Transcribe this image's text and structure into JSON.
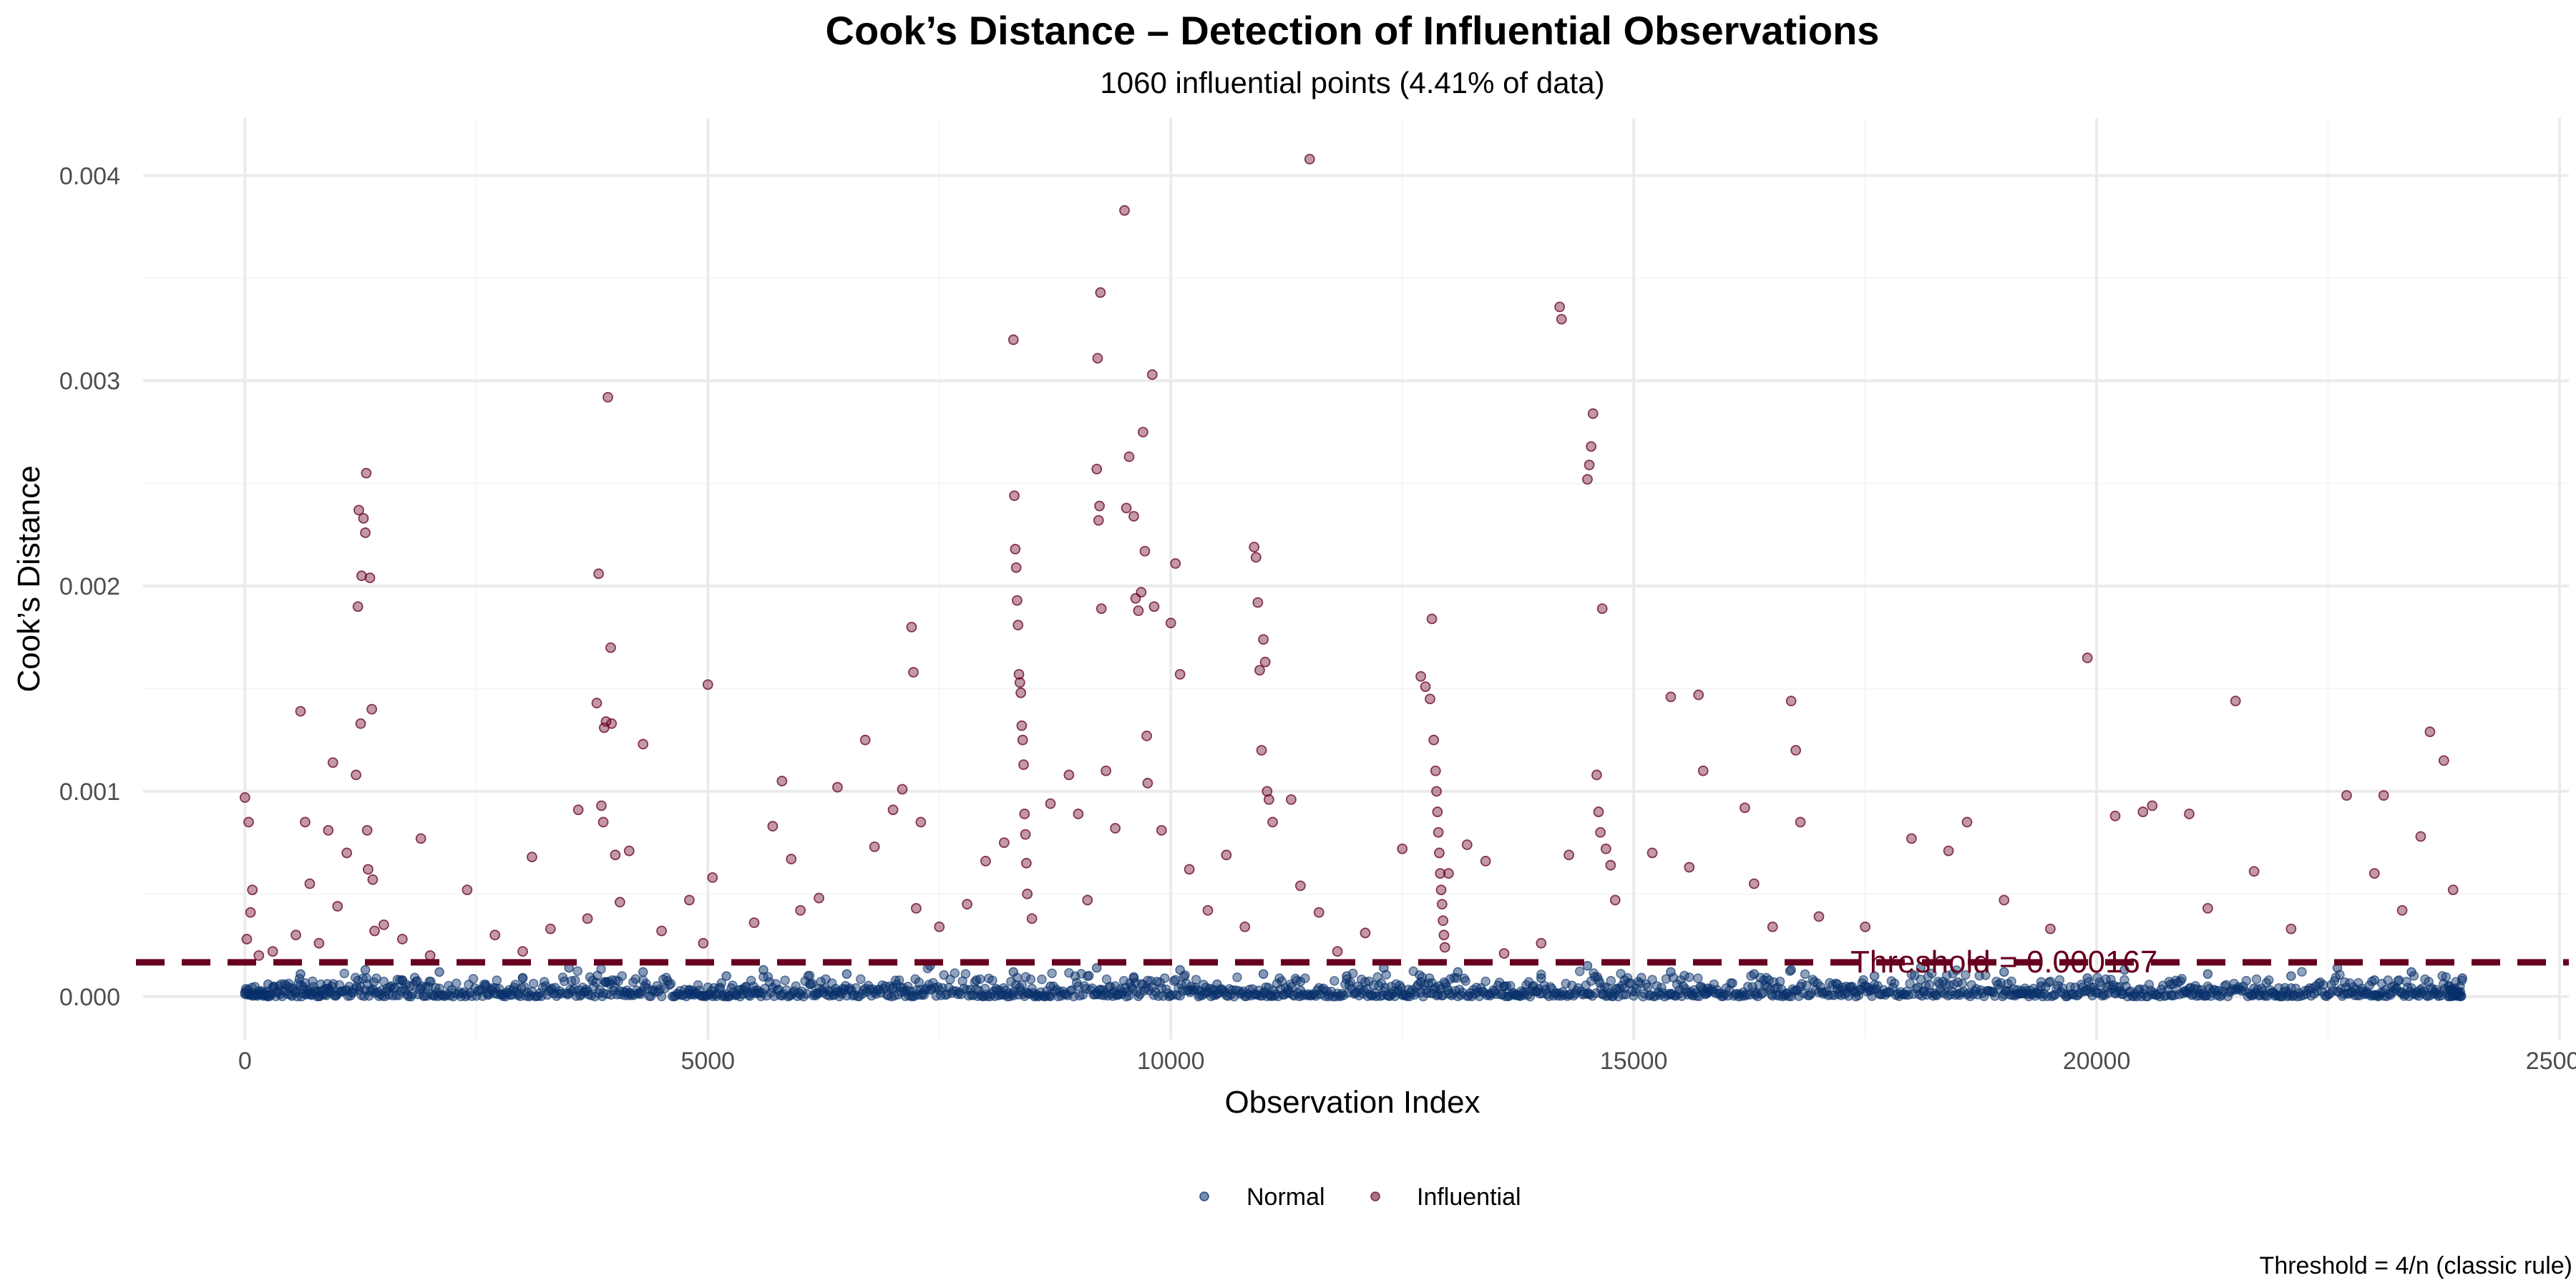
{
  "chart_data": {
    "type": "scatter",
    "title": "Cook’s Distance – Detection of Influential Observations",
    "subtitle": "1060 influential points (4.41% of data)",
    "xlabel": "Observation Index",
    "ylabel": "Cook’s Distance",
    "caption": "Threshold = 4/n (classic rule)",
    "xlim": [
      -1100,
      25100
    ],
    "ylim": [
      -0.00021,
      0.00428
    ],
    "x_ticks": [
      0,
      5000,
      10000,
      15000,
      20000,
      25000
    ],
    "x_tick_labels": [
      "0",
      "5000",
      "10000",
      "15000",
      "20000",
      "25000"
    ],
    "y_ticks": [
      0,
      0.001,
      0.002,
      0.003,
      0.004
    ],
    "y_tick_labels": [
      "0.000",
      "0.001",
      "0.002",
      "0.003",
      "0.004"
    ],
    "grid": true,
    "legend_position": "bottom",
    "colors": {
      "normal": "#08306b",
      "influential": "#67001f"
    },
    "threshold": {
      "value": 0.000167,
      "label": "Threshold = 0.000167",
      "label_x": 19000,
      "style": "dashed",
      "color": "#67001f"
    },
    "series": [
      {
        "name": "Normal",
        "color": "#08306b",
        "points": [
          [
            0,
            2e-05
          ],
          [
            250,
            6e-05
          ],
          [
            600,
            0.00011
          ],
          [
            900,
            4e-05
          ],
          [
            1300,
            0.00013
          ],
          [
            1700,
            8e-05
          ],
          [
            2100,
            0.00012
          ],
          [
            2600,
            5e-05
          ],
          [
            3000,
            9e-05
          ],
          [
            3500,
            0.00014
          ],
          [
            3900,
            7e-05
          ],
          [
            4300,
            0.00012
          ],
          [
            4800,
            3e-05
          ],
          [
            5200,
            0.0001
          ],
          [
            5600,
            0.00013
          ],
          [
            6100,
            6e-05
          ],
          [
            6500,
            0.00011
          ],
          [
            7000,
            4e-05
          ],
          [
            7400,
            0.00015
          ],
          [
            7900,
            8e-05
          ],
          [
            8300,
            0.00012
          ],
          [
            8700,
            5e-05
          ],
          [
            9200,
            0.00014
          ],
          [
            9600,
            9e-05
          ],
          [
            10100,
            0.00013
          ],
          [
            10500,
            6e-05
          ],
          [
            11000,
            0.00011
          ],
          [
            11400,
            3e-05
          ],
          [
            11900,
            0.0001
          ],
          [
            12300,
            0.00014
          ],
          [
            12700,
            7e-05
          ],
          [
            13100,
            0.00012
          ],
          [
            13600,
            5e-05
          ],
          [
            14000,
            9e-05
          ],
          [
            14500,
            0.00015
          ],
          [
            14900,
            8e-05
          ],
          [
            15400,
            0.00012
          ],
          [
            15800,
            4e-05
          ],
          [
            16300,
            0.00011
          ],
          [
            16700,
            0.00013
          ],
          [
            17200,
            6e-05
          ],
          [
            17600,
            0.0001
          ],
          [
            18100,
            0.00014
          ],
          [
            18500,
            7e-05
          ],
          [
            19000,
            0.00012
          ],
          [
            19400,
            5e-05
          ],
          [
            19900,
            9e-05
          ],
          [
            20300,
            0.00013
          ],
          [
            20800,
            6e-05
          ],
          [
            21200,
            0.00011
          ],
          [
            21700,
            4e-05
          ],
          [
            22100,
            0.0001
          ],
          [
            22600,
            0.00014
          ],
          [
            23000,
            8e-05
          ],
          [
            23400,
            0.00012
          ],
          [
            23800,
            5e-05
          ],
          [
            23950,
            9e-05
          ]
        ]
      },
      {
        "name": "Influential",
        "color": "#67001f",
        "points": [
          [
            0,
            0.00097
          ],
          [
            40,
            0.00085
          ],
          [
            80,
            0.00052
          ],
          [
            60,
            0.00041
          ],
          [
            20,
            0.00028
          ],
          [
            150,
            0.0002
          ],
          [
            300,
            0.00022
          ],
          [
            550,
            0.0003
          ],
          [
            600,
            0.00139
          ],
          [
            650,
            0.00085
          ],
          [
            700,
            0.00055
          ],
          [
            800,
            0.00026
          ],
          [
            900,
            0.00081
          ],
          [
            950,
            0.00114
          ],
          [
            1000,
            0.00044
          ],
          [
            1100,
            0.0007
          ],
          [
            1200,
            0.00108
          ],
          [
            1220,
            0.0019
          ],
          [
            1230,
            0.00237
          ],
          [
            1250,
            0.00133
          ],
          [
            1260,
            0.00205
          ],
          [
            1280,
            0.00233
          ],
          [
            1300,
            0.00226
          ],
          [
            1310,
            0.00255
          ],
          [
            1320,
            0.00081
          ],
          [
            1330,
            0.00062
          ],
          [
            1350,
            0.00204
          ],
          [
            1370,
            0.0014
          ],
          [
            1380,
            0.00057
          ],
          [
            1400,
            0.00032
          ],
          [
            1500,
            0.00035
          ],
          [
            1700,
            0.00028
          ],
          [
            1900,
            0.00077
          ],
          [
            2000,
            0.0002
          ],
          [
            2400,
            0.00052
          ],
          [
            2700,
            0.0003
          ],
          [
            3000,
            0.00022
          ],
          [
            3100,
            0.00068
          ],
          [
            3300,
            0.00033
          ],
          [
            3600,
            0.00091
          ],
          [
            3700,
            0.00038
          ],
          [
            3800,
            0.00143
          ],
          [
            3820,
            0.00206
          ],
          [
            3850,
            0.00093
          ],
          [
            3870,
            0.00085
          ],
          [
            3880,
            0.00131
          ],
          [
            3900,
            0.00134
          ],
          [
            3920,
            0.00292
          ],
          [
            3950,
            0.0017
          ],
          [
            3960,
            0.00133
          ],
          [
            4000,
            0.00069
          ],
          [
            4050,
            0.00046
          ],
          [
            4150,
            0.00071
          ],
          [
            4300,
            0.00123
          ],
          [
            4500,
            0.00032
          ],
          [
            4800,
            0.00047
          ],
          [
            4950,
            0.00026
          ],
          [
            5000,
            0.00152
          ],
          [
            5050,
            0.00058
          ],
          [
            5500,
            0.00036
          ],
          [
            5700,
            0.00083
          ],
          [
            5800,
            0.00105
          ],
          [
            5900,
            0.00067
          ],
          [
            6000,
            0.00042
          ],
          [
            6200,
            0.00048
          ],
          [
            6400,
            0.00102
          ],
          [
            6700,
            0.00125
          ],
          [
            6800,
            0.00073
          ],
          [
            7000,
            0.00091
          ],
          [
            7100,
            0.00101
          ],
          [
            7200,
            0.0018
          ],
          [
            7220,
            0.00158
          ],
          [
            7250,
            0.00043
          ],
          [
            7300,
            0.00085
          ],
          [
            7500,
            0.00034
          ],
          [
            7800,
            0.00045
          ],
          [
            8000,
            0.00066
          ],
          [
            8200,
            0.00075
          ],
          [
            8300,
            0.0032
          ],
          [
            8310,
            0.00244
          ],
          [
            8320,
            0.00218
          ],
          [
            8330,
            0.00209
          ],
          [
            8340,
            0.00193
          ],
          [
            8350,
            0.00181
          ],
          [
            8360,
            0.00157
          ],
          [
            8370,
            0.00153
          ],
          [
            8380,
            0.00148
          ],
          [
            8390,
            0.00132
          ],
          [
            8400,
            0.00125
          ],
          [
            8410,
            0.00113
          ],
          [
            8420,
            0.00089
          ],
          [
            8430,
            0.00079
          ],
          [
            8440,
            0.00065
          ],
          [
            8450,
            0.0005
          ],
          [
            8500,
            0.00038
          ],
          [
            8700,
            0.00094
          ],
          [
            8900,
            0.00108
          ],
          [
            9000,
            0.00089
          ],
          [
            9100,
            0.00047
          ],
          [
            9200,
            0.00257
          ],
          [
            9210,
            0.00311
          ],
          [
            9220,
            0.00232
          ],
          [
            9230,
            0.00239
          ],
          [
            9240,
            0.00343
          ],
          [
            9250,
            0.00189
          ],
          [
            9300,
            0.0011
          ],
          [
            9400,
            0.00082
          ],
          [
            9500,
            0.00383
          ],
          [
            9520,
            0.00238
          ],
          [
            9550,
            0.00263
          ],
          [
            9600,
            0.00234
          ],
          [
            9620,
            0.00194
          ],
          [
            9650,
            0.00188
          ],
          [
            9680,
            0.00197
          ],
          [
            9700,
            0.00275
          ],
          [
            9720,
            0.00217
          ],
          [
            9740,
            0.00127
          ],
          [
            9750,
            0.00104
          ],
          [
            9800,
            0.00303
          ],
          [
            9820,
            0.0019
          ],
          [
            9900,
            0.00081
          ],
          [
            10000,
            0.00182
          ],
          [
            10050,
            0.00211
          ],
          [
            10100,
            0.00157
          ],
          [
            10200,
            0.00062
          ],
          [
            10400,
            0.00042
          ],
          [
            10600,
            0.00069
          ],
          [
            10800,
            0.00034
          ],
          [
            10900,
            0.00219
          ],
          [
            10920,
            0.00214
          ],
          [
            10940,
            0.00192
          ],
          [
            10960,
            0.00159
          ],
          [
            10980,
            0.0012
          ],
          [
            11000,
            0.00174
          ],
          [
            11020,
            0.00163
          ],
          [
            11040,
            0.001
          ],
          [
            11060,
            0.00096
          ],
          [
            11100,
            0.00085
          ],
          [
            11300,
            0.00096
          ],
          [
            11400,
            0.00054
          ],
          [
            11500,
            0.00408
          ],
          [
            11600,
            0.00041
          ],
          [
            11800,
            0.00022
          ],
          [
            12100,
            0.00031
          ],
          [
            12500,
            0.00072
          ],
          [
            12700,
            0.00156
          ],
          [
            12750,
            0.00151
          ],
          [
            12800,
            0.00145
          ],
          [
            12820,
            0.00184
          ],
          [
            12840,
            0.00125
          ],
          [
            12860,
            0.0011
          ],
          [
            12870,
            0.001
          ],
          [
            12880,
            0.0009
          ],
          [
            12890,
            0.0008
          ],
          [
            12900,
            0.0007
          ],
          [
            12910,
            0.0006
          ],
          [
            12920,
            0.00052
          ],
          [
            12930,
            0.00045
          ],
          [
            12940,
            0.00037
          ],
          [
            12950,
            0.0003
          ],
          [
            12960,
            0.00024
          ],
          [
            13000,
            0.0006
          ],
          [
            13200,
            0.00074
          ],
          [
            13400,
            0.00066
          ],
          [
            13600,
            0.00021
          ],
          [
            14000,
            0.00026
          ],
          [
            14200,
            0.00336
          ],
          [
            14220,
            0.0033
          ],
          [
            14300,
            0.00069
          ],
          [
            14500,
            0.00252
          ],
          [
            14520,
            0.00259
          ],
          [
            14540,
            0.00268
          ],
          [
            14560,
            0.00284
          ],
          [
            14600,
            0.00108
          ],
          [
            14620,
            0.0009
          ],
          [
            14640,
            0.0008
          ],
          [
            14660,
            0.00189
          ],
          [
            14700,
            0.00072
          ],
          [
            14750,
            0.00064
          ],
          [
            14800,
            0.00047
          ],
          [
            15200,
            0.0007
          ],
          [
            15400,
            0.00146
          ],
          [
            15600,
            0.00063
          ],
          [
            15700,
            0.00147
          ],
          [
            15750,
            0.0011
          ],
          [
            16200,
            0.00092
          ],
          [
            16300,
            0.00055
          ],
          [
            16500,
            0.00034
          ],
          [
            16700,
            0.00144
          ],
          [
            16750,
            0.0012
          ],
          [
            16800,
            0.00085
          ],
          [
            17000,
            0.00039
          ],
          [
            17500,
            0.00034
          ],
          [
            18000,
            0.00077
          ],
          [
            18400,
            0.00071
          ],
          [
            18600,
            0.00085
          ],
          [
            19000,
            0.00047
          ],
          [
            19500,
            0.00033
          ],
          [
            19900,
            0.00165
          ],
          [
            20200,
            0.00088
          ],
          [
            20500,
            0.0009
          ],
          [
            20600,
            0.00093
          ],
          [
            21000,
            0.00089
          ],
          [
            21200,
            0.00043
          ],
          [
            21500,
            0.00144
          ],
          [
            21700,
            0.00061
          ],
          [
            22100,
            0.00033
          ],
          [
            22700,
            0.00098
          ],
          [
            23000,
            0.0006
          ],
          [
            23100,
            0.00098
          ],
          [
            23300,
            0.00042
          ],
          [
            23500,
            0.00078
          ],
          [
            23600,
            0.00129
          ],
          [
            23750,
            0.00115
          ],
          [
            23850,
            0.00052
          ]
        ]
      }
    ]
  }
}
